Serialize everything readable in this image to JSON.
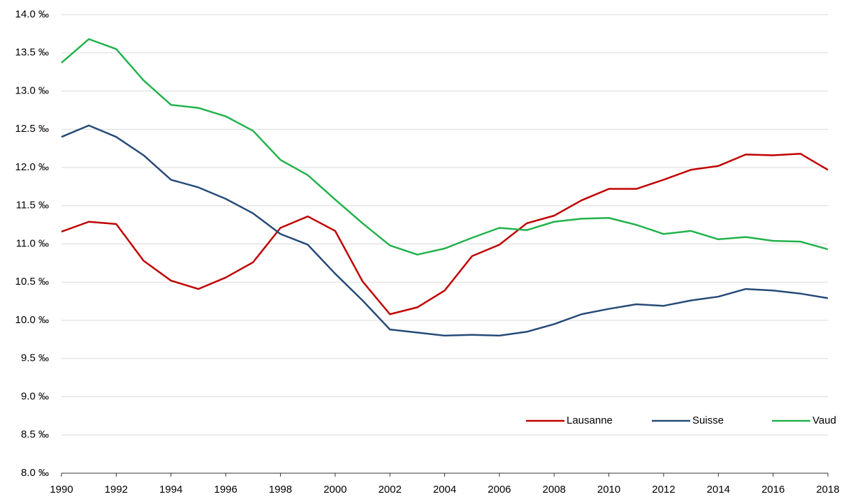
{
  "chart_data": {
    "type": "line",
    "x": [
      1990,
      1991,
      1992,
      1993,
      1994,
      1995,
      1996,
      1997,
      1998,
      1999,
      2000,
      2001,
      2002,
      2003,
      2004,
      2005,
      2006,
      2007,
      2008,
      2009,
      2010,
      2011,
      2012,
      2013,
      2014,
      2015,
      2016,
      2017,
      2018
    ],
    "series": [
      {
        "name": "Lausanne",
        "color": "#c00000",
        "values": [
          11.16,
          11.29,
          11.26,
          10.78,
          10.52,
          10.41,
          10.56,
          10.76,
          11.21,
          11.36,
          11.17,
          10.51,
          10.08,
          10.17,
          10.39,
          10.84,
          10.99,
          11.27,
          11.37,
          11.57,
          11.72,
          11.72,
          11.84,
          11.97,
          12.02,
          12.17,
          12.16,
          12.18,
          11.97
        ]
      },
      {
        "name": "Suisse",
        "color": "#264a78",
        "values": [
          12.4,
          12.55,
          12.4,
          12.16,
          11.84,
          11.74,
          11.59,
          11.4,
          11.13,
          10.99,
          10.61,
          10.26,
          9.88,
          9.84,
          9.8,
          9.81,
          9.8,
          9.85,
          9.95,
          10.08,
          10.15,
          10.21,
          10.19,
          10.26,
          10.31,
          10.41,
          10.39,
          10.35,
          10.29
        ]
      },
      {
        "name": "Vaud",
        "color": "#21b24b",
        "values": [
          13.37,
          13.68,
          13.55,
          13.14,
          12.82,
          12.78,
          12.67,
          12.48,
          12.1,
          11.9,
          11.58,
          11.27,
          10.98,
          10.86,
          10.94,
          11.08,
          11.21,
          11.18,
          11.29,
          11.33,
          11.34,
          11.25,
          11.13,
          11.17,
          11.06,
          11.09,
          11.04,
          11.03,
          10.93
        ]
      }
    ],
    "xlim": [
      1990,
      2018
    ],
    "xticks": [
      1990,
      1992,
      1994,
      1996,
      1998,
      2000,
      2002,
      2004,
      2006,
      2008,
      2010,
      2012,
      2014,
      2016,
      2018
    ],
    "ylim": [
      8,
      14
    ],
    "yticks": [
      {
        "value": 8,
        "label": "8.0 ‰"
      },
      {
        "value": 8.5,
        "label": "8.5 ‰"
      },
      {
        "value": 9,
        "label": "9.0 ‰"
      },
      {
        "value": 9.5,
        "label": "9.5 ‰"
      },
      {
        "value": 10,
        "label": "10.0 ‰"
      },
      {
        "value": 10.5,
        "label": "10.5 ‰"
      },
      {
        "value": 11,
        "label": "11.0 ‰"
      },
      {
        "value": 11.5,
        "label": "11.5 ‰"
      },
      {
        "value": 12,
        "label": "12.0 ‰"
      },
      {
        "value": 12.5,
        "label": "12.5 ‰"
      },
      {
        "value": 13,
        "label": "13.0 ‰"
      },
      {
        "value": 13.5,
        "label": "13.5 ‰"
      },
      {
        "value": 14,
        "label": "14.0 ‰"
      }
    ],
    "grid": true,
    "legend": "lower right"
  }
}
